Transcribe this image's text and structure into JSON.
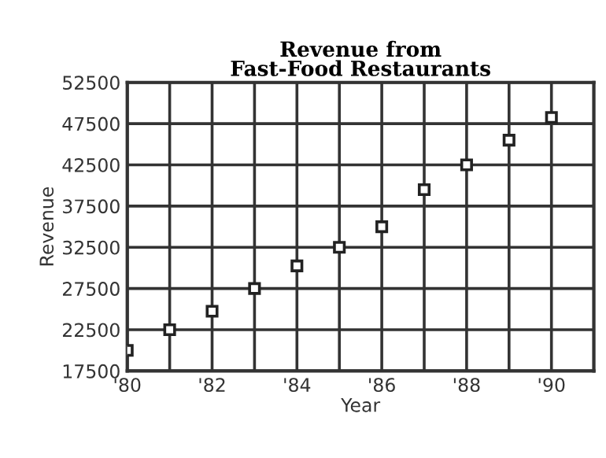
{
  "chart_data": {
    "type": "scatter",
    "title": "Revenue from\nFast-Food Restaurants",
    "xlabel": "Year",
    "ylabel": "Revenue",
    "x": [
      1980,
      1981,
      1982,
      1983,
      1984,
      1985,
      1986,
      1987,
      1988,
      1989,
      1990
    ],
    "values": [
      20000,
      22500,
      24750,
      27500,
      30250,
      32500,
      35000,
      39500,
      42500,
      45500,
      48250
    ],
    "color": "#222222",
    "marker": "square",
    "grid": true,
    "xlim": [
      1980,
      1991
    ],
    "xticks": [
      {
        "value": 1980,
        "label": "'80"
      },
      {
        "value": 1981,
        "label": null
      },
      {
        "value": 1982,
        "label": "'82"
      },
      {
        "value": 1983,
        "label": null
      },
      {
        "value": 1984,
        "label": "'84"
      },
      {
        "value": 1985,
        "label": null
      },
      {
        "value": 1986,
        "label": "'86"
      },
      {
        "value": 1987,
        "label": null
      },
      {
        "value": 1988,
        "label": "'88"
      },
      {
        "value": 1989,
        "label": null
      },
      {
        "value": 1990,
        "label": "'90"
      },
      {
        "value": 1991,
        "label": null
      }
    ],
    "ylim": [
      17500,
      52500
    ],
    "yticks": [
      17500,
      22500,
      27500,
      32500,
      37500,
      42500,
      47500,
      52500
    ]
  }
}
